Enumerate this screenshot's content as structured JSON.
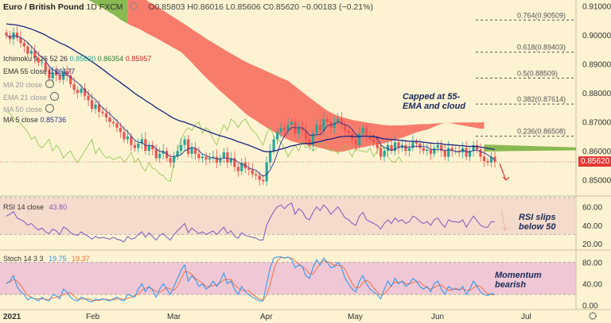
{
  "header": {
    "symbol": "Euro / British Pound",
    "interval": "1D",
    "exchange": "FXCM",
    "ohlc": "O0.85803 H0.86016 L0.85606 C0.85620 −0.00183 (−0.21%)"
  },
  "indicators": {
    "ichimoku": {
      "label": "Ichimoku 9 26 52 26",
      "v1": "0.85620",
      "v2": "0.86354",
      "v3": "0.85957"
    },
    "ema55": {
      "label": "EMA 55 close",
      "value": "0.86177"
    },
    "ma20": {
      "label": "MA 20 close"
    },
    "ema21": {
      "label": "EMA 21 close"
    },
    "ma50": {
      "label": "MA 50 close"
    },
    "ma5": {
      "label": "MA 5 close",
      "value": "0.85736"
    }
  },
  "annotations": {
    "main": "Capped at 55-EMA and cloud",
    "rsi": "RSI slips below 50",
    "stoch": "Momentum bearish"
  },
  "rsi": {
    "label": "RSI 14 close",
    "value": "43.80"
  },
  "stoch": {
    "label": "Stoch 14 3 3",
    "k": "19.75",
    "d": "19.37"
  },
  "current_price": "0.85620",
  "colors": {
    "up": "#26a69a",
    "down": "#ef5350",
    "cloud_red": "#f7665a",
    "cloud_green": "#7cb342",
    "ema55": "#1a237e",
    "ma5": "#283593",
    "rsi": "#7e57c2",
    "stoch_k": "#2196f3",
    "stoch_d": "#ff7043"
  },
  "chart_data": [
    {
      "type": "candlestick",
      "title": "Euro / British Pound 1D FXCM",
      "xlabel": "",
      "ylabel": "",
      "x_ticks": [
        "2021",
        "Feb",
        "Mar",
        "Apr",
        "May",
        "Jun",
        "Jul"
      ],
      "y_ticks": [
        "0.91000",
        "0.90000",
        "0.89000",
        "0.88000",
        "0.87000",
        "0.86000",
        "0.85000"
      ],
      "ylim": [
        0.845,
        0.912
      ],
      "fibonacci": [
        {
          "label": "0.764(0.90509)",
          "value": 0.90509
        },
        {
          "label": "0.618(0.89403)",
          "value": 0.89403
        },
        {
          "label": "0.5(0.88509)",
          "value": 0.88509
        },
        {
          "label": "0.382(0.87614)",
          "value": 0.87614
        },
        {
          "label": "0.236(0.86508)",
          "value": 0.86508
        }
      ],
      "close_series": [
        0.8998,
        0.8985,
        0.9008,
        0.899,
        0.8972,
        0.896,
        0.8935,
        0.8945,
        0.892,
        0.8905,
        0.8905,
        0.8878,
        0.885,
        0.887,
        0.886,
        0.8845,
        0.8875,
        0.886,
        0.883,
        0.881,
        0.88,
        0.8815,
        0.879,
        0.8775,
        0.8745,
        0.876,
        0.8735,
        0.873,
        0.8715,
        0.87,
        0.8695,
        0.868,
        0.8665,
        0.864,
        0.865,
        0.862,
        0.861,
        0.8625,
        0.864,
        0.86,
        0.862,
        0.8605,
        0.8575,
        0.859,
        0.86,
        0.8575,
        0.856,
        0.858,
        0.86,
        0.862,
        0.864,
        0.859,
        0.861,
        0.859,
        0.8575,
        0.858,
        0.857,
        0.8575,
        0.858,
        0.856,
        0.8575,
        0.8595,
        0.856,
        0.8575,
        0.8545,
        0.853,
        0.856,
        0.854,
        0.8535,
        0.852,
        0.8515,
        0.85,
        0.8495,
        0.856,
        0.86,
        0.864,
        0.8665,
        0.868,
        0.867,
        0.869,
        0.87,
        0.866,
        0.868,
        0.867,
        0.864,
        0.862,
        0.866,
        0.869,
        0.867,
        0.871,
        0.87,
        0.868,
        0.87,
        0.871,
        0.869,
        0.867,
        0.866,
        0.864,
        0.862,
        0.866,
        0.868,
        0.865,
        0.864,
        0.863,
        0.861,
        0.858,
        0.86,
        0.862,
        0.86,
        0.863,
        0.861,
        0.862,
        0.86,
        0.861,
        0.863,
        0.8625,
        0.861,
        0.86,
        0.8605,
        0.859,
        0.861,
        0.862,
        0.86,
        0.858,
        0.861,
        0.86,
        0.86,
        0.8595,
        0.861,
        0.858,
        0.86,
        0.862,
        0.8605,
        0.858,
        0.8565,
        0.856,
        0.858,
        0.8562
      ],
      "current": 0.8562
    },
    {
      "type": "line",
      "title": "RSI 14 close",
      "y_ticks": [
        "60.00",
        "40.00",
        "20.00"
      ],
      "ylim": [
        15,
        70
      ],
      "band": [
        30,
        70
      ],
      "values": [
        50,
        52,
        55,
        48,
        46,
        44,
        40,
        42,
        38,
        35,
        37,
        33,
        31,
        36,
        34,
        30,
        38,
        36,
        32,
        30,
        29,
        33,
        30,
        28,
        25,
        28,
        26,
        27,
        26,
        25,
        27,
        25,
        24,
        22,
        28,
        25,
        26,
        30,
        33,
        27,
        32,
        28,
        24,
        29,
        31,
        27,
        24,
        30,
        34,
        38,
        42,
        32,
        37,
        34,
        31,
        33,
        30,
        32,
        34,
        30,
        34,
        38,
        31,
        34,
        28,
        26,
        32,
        29,
        28,
        27,
        26,
        24,
        24,
        40,
        48,
        55,
        60,
        62,
        58,
        62,
        64,
        52,
        58,
        55,
        48,
        46,
        54,
        60,
        56,
        62,
        58,
        52,
        56,
        60,
        54,
        48,
        46,
        42,
        40,
        50,
        54,
        46,
        44,
        42,
        40,
        36,
        42,
        46,
        42,
        48,
        44,
        46,
        42,
        44,
        50,
        48,
        44,
        42,
        44,
        40,
        46,
        48,
        42,
        38,
        46,
        44,
        44,
        43,
        46,
        38,
        44,
        50,
        45,
        40,
        38,
        38,
        44,
        43.8
      ]
    },
    {
      "type": "line",
      "title": "Stoch 14 3 3",
      "y_ticks": [
        "80.00",
        "40.00",
        "0.00"
      ],
      "ylim": [
        -5,
        100
      ],
      "band": [
        20,
        80
      ],
      "series": [
        {
          "name": "%K",
          "values": [
            40,
            45,
            55,
            35,
            25,
            20,
            10,
            15,
            12,
            8,
            15,
            10,
            8,
            20,
            18,
            12,
            30,
            25,
            15,
            10,
            8,
            15,
            12,
            8,
            6,
            12,
            10,
            12,
            10,
            8,
            12,
            15,
            10,
            8,
            20,
            18,
            15,
            30,
            40,
            25,
            35,
            28,
            15,
            30,
            40,
            30,
            20,
            35,
            50,
            65,
            75,
            45,
            55,
            48,
            35,
            40,
            30,
            35,
            45,
            35,
            45,
            60,
            40,
            45,
            30,
            20,
            35,
            25,
            20,
            15,
            12,
            8,
            8,
            40,
            70,
            88,
            90,
            90,
            88,
            90,
            85,
            70,
            75,
            72,
            55,
            50,
            70,
            85,
            75,
            88,
            80,
            70,
            72,
            80,
            70,
            50,
            40,
            30,
            25,
            45,
            55,
            40,
            30,
            25,
            20,
            12,
            30,
            45,
            35,
            50,
            40,
            45,
            35,
            40,
            50,
            45,
            35,
            30,
            35,
            25,
            40,
            45,
            30,
            20,
            35,
            30,
            30,
            28,
            35,
            20,
            30,
            45,
            35,
            25,
            20,
            18,
            22,
            19.75
          ]
        },
        {
          "name": "%D",
          "values": [
            42,
            43,
            48,
            45,
            38,
            27,
            18,
            15,
            12,
            12,
            12,
            11,
            11,
            13,
            15,
            17,
            20,
            22,
            23,
            17,
            11,
            11,
            12,
            12,
            9,
            9,
            9,
            11,
            11,
            10,
            10,
            12,
            12,
            11,
            13,
            15,
            18,
            21,
            28,
            32,
            33,
            30,
            26,
            24,
            28,
            33,
            30,
            28,
            35,
            50,
            63,
            62,
            58,
            50,
            46,
            41,
            35,
            35,
            37,
            38,
            42,
            47,
            48,
            48,
            38,
            32,
            28,
            27,
            27,
            20,
            16,
            12,
            9,
            19,
            39,
            66,
            83,
            89,
            89,
            89,
            88,
            82,
            77,
            72,
            67,
            59,
            58,
            68,
            77,
            83,
            81,
            79,
            74,
            74,
            74,
            67,
            53,
            40,
            32,
            33,
            42,
            47,
            42,
            32,
            25,
            19,
            21,
            29,
            37,
            43,
            42,
            45,
            40,
            40,
            42,
            45,
            43,
            37,
            33,
            30,
            33,
            37,
            38,
            32,
            28,
            28,
            32,
            29,
            31,
            28,
            28,
            32,
            37,
            35,
            27,
            21,
            20,
            19.37
          ]
        }
      ]
    }
  ],
  "x_axis_labels": [
    "2021",
    "Feb",
    "Mar",
    "Apr",
    "May",
    "Jun",
    "Jul"
  ],
  "rsi_ticks": [
    "60.00",
    "40.00",
    "20.00"
  ],
  "stoch_ticks": [
    "80.00",
    "40.00",
    "0.00"
  ]
}
